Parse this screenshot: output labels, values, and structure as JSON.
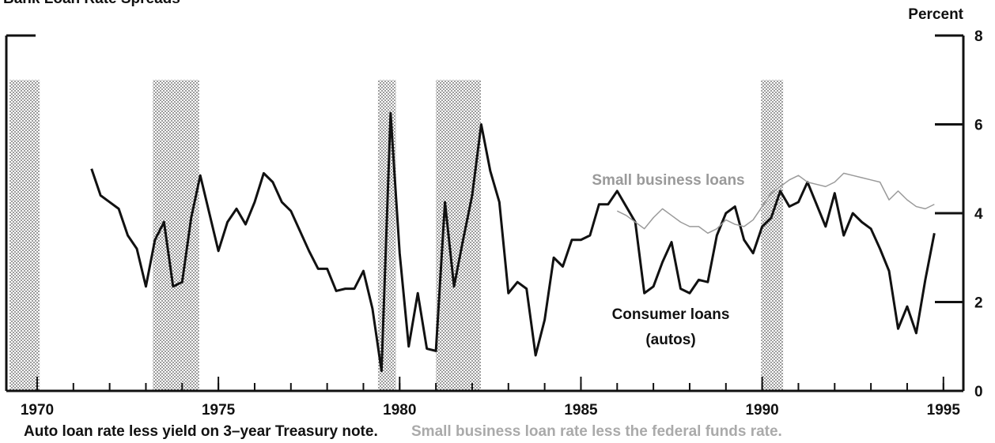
{
  "chart_data": {
    "type": "line",
    "title": "Bank Loan Rate Spreads",
    "y_label": "Percent",
    "footnote": "Auto loan rate less yield on 3–year Treasury note.",
    "footnote2": "Small business loan rate less the federal funds rate.",
    "xlim": [
      1969.15,
      1995.55
    ],
    "ylim": [
      0,
      8
    ],
    "xticks": [
      1970,
      1975,
      1980,
      1985,
      1990,
      1995
    ],
    "yticks": [
      0,
      2,
      4,
      6,
      8
    ],
    "recessions": [
      [
        1969.24,
        1970.07
      ],
      [
        1973.19,
        1974.47
      ],
      [
        1979.4,
        1979.9
      ],
      [
        1981.0,
        1982.24
      ],
      [
        1989.97,
        1990.58
      ]
    ],
    "series": [
      {
        "name": "Consumer loans",
        "name2": "(autos)",
        "color": "#111111",
        "width": 3,
        "x": [
          1971.5,
          1971.75,
          1972,
          1972.25,
          1972.5,
          1972.75,
          1973,
          1973.25,
          1973.5,
          1973.75,
          1974,
          1974.25,
          1974.5,
          1974.75,
          1975,
          1975.25,
          1975.5,
          1975.75,
          1976,
          1976.25,
          1976.5,
          1976.75,
          1977,
          1977.25,
          1977.5,
          1977.75,
          1978,
          1978.25,
          1978.5,
          1978.75,
          1979,
          1979.25,
          1979.5,
          1979.75,
          1980,
          1980.25,
          1980.5,
          1980.75,
          1981,
          1981.25,
          1981.5,
          1981.75,
          1982,
          1982.25,
          1982.5,
          1982.75,
          1983,
          1983.25,
          1983.5,
          1983.75,
          1984,
          1984.25,
          1984.5,
          1984.75,
          1985,
          1985.25,
          1985.5,
          1985.75,
          1986,
          1986.25,
          1986.5,
          1986.75,
          1987,
          1987.25,
          1987.5,
          1987.75,
          1988,
          1988.25,
          1988.5,
          1988.75,
          1989,
          1989.25,
          1989.5,
          1989.75,
          1990,
          1990.25,
          1990.5,
          1990.75,
          1991,
          1991.25,
          1991.5,
          1991.75,
          1992,
          1992.25,
          1992.5,
          1992.75,
          1993,
          1993.25,
          1993.5,
          1993.75,
          1994,
          1994.25,
          1994.5,
          1994.75
        ],
        "values": [
          5.0,
          4.4,
          4.25,
          4.1,
          3.5,
          3.2,
          2.35,
          3.4,
          3.8,
          2.35,
          2.45,
          3.9,
          4.85,
          4.0,
          3.15,
          3.8,
          4.1,
          3.75,
          4.25,
          4.9,
          4.7,
          4.25,
          4.05,
          3.6,
          3.15,
          2.75,
          2.75,
          2.25,
          2.3,
          2.3,
          2.7,
          1.85,
          0.45,
          6.25,
          3.1,
          1.0,
          2.2,
          0.95,
          0.9,
          4.25,
          2.35,
          3.4,
          4.4,
          6.0,
          4.95,
          4.25,
          2.2,
          2.45,
          2.3,
          0.8,
          1.6,
          3.0,
          2.8,
          3.4,
          3.4,
          3.5,
          4.2,
          4.2,
          4.5,
          4.15,
          3.8,
          2.2,
          2.35,
          2.9,
          3.35,
          2.3,
          2.2,
          2.5,
          2.45,
          3.5,
          4.0,
          4.15,
          3.4,
          3.1,
          3.7,
          3.9,
          4.5,
          4.15,
          4.25,
          4.7,
          4.2,
          3.7,
          4.45,
          3.5,
          4.0,
          3.8,
          3.65,
          3.2,
          2.7,
          1.4,
          1.9,
          1.3,
          2.5,
          3.55
        ]
      },
      {
        "name": "Small business loans",
        "color": "#9a9a9a",
        "width": 1.5,
        "x": [
          1986,
          1986.25,
          1986.5,
          1986.75,
          1987,
          1987.25,
          1987.5,
          1987.75,
          1988,
          1988.25,
          1988.5,
          1988.75,
          1989,
          1989.25,
          1989.5,
          1989.75,
          1990,
          1990.25,
          1990.5,
          1990.75,
          1991,
          1991.25,
          1991.5,
          1991.75,
          1992,
          1992.25,
          1992.5,
          1992.75,
          1993,
          1993.25,
          1993.5,
          1993.75,
          1994,
          1994.25,
          1994.5,
          1994.75
        ],
        "values": [
          4.05,
          3.95,
          3.8,
          3.65,
          3.9,
          4.1,
          3.95,
          3.8,
          3.7,
          3.7,
          3.55,
          3.65,
          3.85,
          3.75,
          3.7,
          3.85,
          4.15,
          4.45,
          4.6,
          4.75,
          4.85,
          4.7,
          4.65,
          4.6,
          4.7,
          4.9,
          4.85,
          4.8,
          4.75,
          4.7,
          4.3,
          4.5,
          4.3,
          4.15,
          4.1,
          4.2
        ]
      }
    ]
  }
}
